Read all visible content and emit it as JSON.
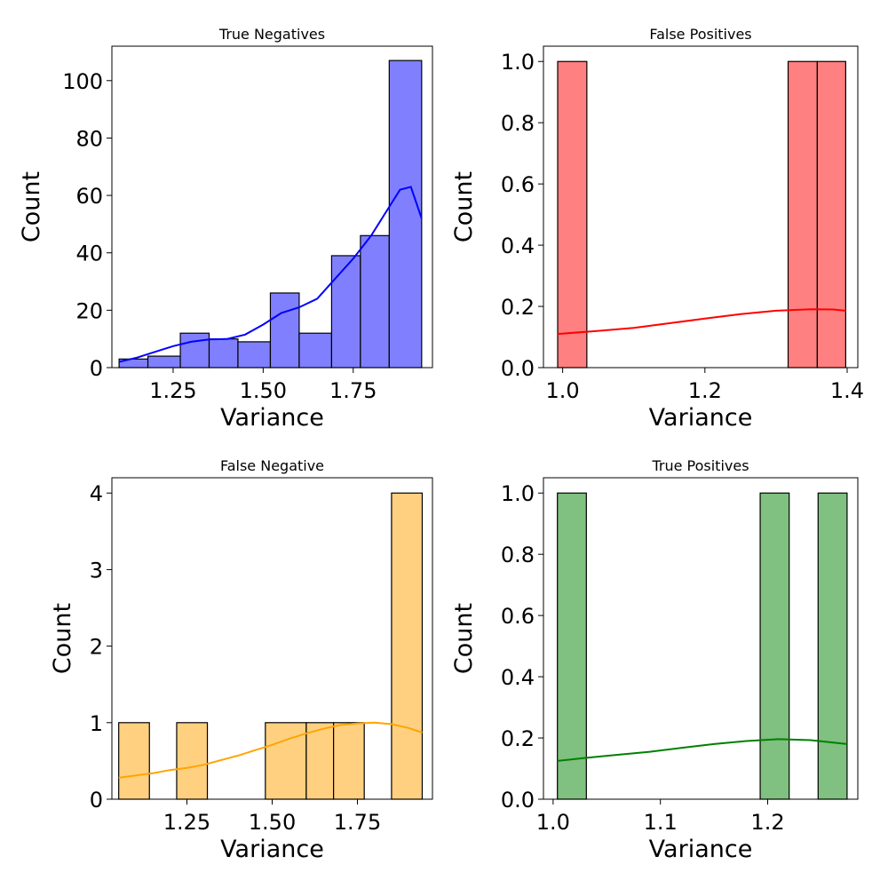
{
  "chart_data": [
    {
      "type": "bar",
      "title": "True Negatives",
      "xlabel": "Variance",
      "ylabel": "Count",
      "color": "#8080ff",
      "kde_color": "#0000ff",
      "xlim": [
        1.08,
        1.97
      ],
      "ylim": [
        0,
        112
      ],
      "xticks": [
        1.25,
        1.5,
        1.75
      ],
      "xtick_labels": [
        "1.25",
        "1.50",
        "1.75"
      ],
      "yticks": [
        0,
        20,
        40,
        60,
        80,
        100
      ],
      "ytick_labels": [
        "0",
        "20",
        "40",
        "60",
        "80",
        "100"
      ],
      "bins": [
        {
          "x0": 1.1,
          "x1": 1.18,
          "count": 3
        },
        {
          "x0": 1.18,
          "x1": 1.27,
          "count": 4
        },
        {
          "x0": 1.27,
          "x1": 1.35,
          "count": 12
        },
        {
          "x0": 1.35,
          "x1": 1.43,
          "count": 10
        },
        {
          "x0": 1.43,
          "x1": 1.52,
          "count": 9
        },
        {
          "x0": 1.52,
          "x1": 1.6,
          "count": 26
        },
        {
          "x0": 1.6,
          "x1": 1.69,
          "count": 12
        },
        {
          "x0": 1.69,
          "x1": 1.77,
          "count": 39
        },
        {
          "x0": 1.77,
          "x1": 1.85,
          "count": 46
        },
        {
          "x0": 1.85,
          "x1": 1.94,
          "count": 107
        }
      ],
      "kde": [
        [
          1.1,
          2
        ],
        [
          1.15,
          3.5
        ],
        [
          1.2,
          5.5
        ],
        [
          1.25,
          7.5
        ],
        [
          1.3,
          9
        ],
        [
          1.35,
          9.8
        ],
        [
          1.4,
          10
        ],
        [
          1.45,
          11.5
        ],
        [
          1.5,
          15
        ],
        [
          1.55,
          19
        ],
        [
          1.6,
          21
        ],
        [
          1.65,
          24
        ],
        [
          1.7,
          31
        ],
        [
          1.75,
          38
        ],
        [
          1.8,
          46
        ],
        [
          1.85,
          56
        ],
        [
          1.88,
          62
        ],
        [
          1.91,
          63
        ],
        [
          1.94,
          52
        ]
      ]
    },
    {
      "type": "bar",
      "title": "False Positives",
      "xlabel": "Variance",
      "ylabel": "Count",
      "color": "#ff8080",
      "kde_color": "#ff0000",
      "xlim": [
        0.973,
        1.415
      ],
      "ylim": [
        0,
        1.05
      ],
      "xticks": [
        1.0,
        1.2,
        1.4
      ],
      "xtick_labels": [
        "1.0",
        "1.2",
        "1.4"
      ],
      "yticks": [
        0,
        0.2,
        0.4,
        0.6,
        0.8,
        1.0
      ],
      "ytick_labels": [
        "0.0",
        "0.2",
        "0.4",
        "0.6",
        "0.8",
        "1.0"
      ],
      "bins": [
        {
          "x0": 0.993,
          "x1": 1.034,
          "count": 1
        },
        {
          "x0": 1.034,
          "x1": 1.074,
          "count": 0
        },
        {
          "x0": 1.074,
          "x1": 1.115,
          "count": 0
        },
        {
          "x0": 1.115,
          "x1": 1.155,
          "count": 0
        },
        {
          "x0": 1.155,
          "x1": 1.196,
          "count": 0
        },
        {
          "x0": 1.196,
          "x1": 1.236,
          "count": 0
        },
        {
          "x0": 1.236,
          "x1": 1.277,
          "count": 0
        },
        {
          "x0": 1.277,
          "x1": 1.317,
          "count": 0
        },
        {
          "x0": 1.317,
          "x1": 1.358,
          "count": 1
        },
        {
          "x0": 1.358,
          "x1": 1.398,
          "count": 1
        }
      ],
      "kde": [
        [
          0.993,
          0.11
        ],
        [
          1.05,
          0.12
        ],
        [
          1.1,
          0.13
        ],
        [
          1.15,
          0.145
        ],
        [
          1.2,
          0.16
        ],
        [
          1.25,
          0.175
        ],
        [
          1.3,
          0.186
        ],
        [
          1.35,
          0.191
        ],
        [
          1.38,
          0.19
        ],
        [
          1.398,
          0.186
        ]
      ]
    },
    {
      "type": "bar",
      "title": "False Negative",
      "xlabel": "Variance",
      "ylabel": "Count",
      "color": "#ffd080",
      "kde_color": "#ffa500",
      "xlim": [
        1.03,
        1.97
      ],
      "ylim": [
        0,
        4.2
      ],
      "xticks": [
        1.25,
        1.5,
        1.75
      ],
      "xtick_labels": [
        "1.25",
        "1.50",
        "1.75"
      ],
      "yticks": [
        0,
        1,
        2,
        3,
        4
      ],
      "ytick_labels": [
        "0",
        "1",
        "2",
        "3",
        "4"
      ],
      "bins": [
        {
          "x0": 1.05,
          "x1": 1.14,
          "count": 1
        },
        {
          "x0": 1.14,
          "x1": 1.22,
          "count": 0
        },
        {
          "x0": 1.22,
          "x1": 1.31,
          "count": 1
        },
        {
          "x0": 1.31,
          "x1": 1.4,
          "count": 0
        },
        {
          "x0": 1.4,
          "x1": 1.48,
          "count": 0
        },
        {
          "x0": 1.48,
          "x1": 1.6,
          "count": 1
        },
        {
          "x0": 1.6,
          "x1": 1.68,
          "count": 1
        },
        {
          "x0": 1.68,
          "x1": 1.77,
          "count": 1
        },
        {
          "x0": 1.77,
          "x1": 1.85,
          "count": 0
        },
        {
          "x0": 1.85,
          "x1": 1.94,
          "count": 4
        }
      ],
      "kde": [
        [
          1.05,
          0.28
        ],
        [
          1.1,
          0.31
        ],
        [
          1.15,
          0.34
        ],
        [
          1.2,
          0.38
        ],
        [
          1.25,
          0.41
        ],
        [
          1.3,
          0.45
        ],
        [
          1.35,
          0.51
        ],
        [
          1.4,
          0.57
        ],
        [
          1.45,
          0.64
        ],
        [
          1.5,
          0.71
        ],
        [
          1.55,
          0.79
        ],
        [
          1.6,
          0.86
        ],
        [
          1.65,
          0.92
        ],
        [
          1.7,
          0.97
        ],
        [
          1.75,
          0.99
        ],
        [
          1.8,
          1.0
        ],
        [
          1.85,
          0.98
        ],
        [
          1.9,
          0.93
        ],
        [
          1.94,
          0.87
        ]
      ]
    },
    {
      "type": "bar",
      "title": "True Positives",
      "xlabel": "Variance",
      "ylabel": "Count",
      "color": "#80c080",
      "kde_color": "#008000",
      "xlim": [
        0.991,
        1.284
      ],
      "ylim": [
        0,
        1.05
      ],
      "xticks": [
        1.0,
        1.1,
        1.2
      ],
      "xtick_labels": [
        "1.0",
        "1.1",
        "1.2"
      ],
      "yticks": [
        0,
        0.2,
        0.4,
        0.6,
        0.8,
        1.0
      ],
      "ytick_labels": [
        "0.0",
        "0.2",
        "0.4",
        "0.6",
        "0.8",
        "1.0"
      ],
      "bins": [
        {
          "x0": 1.004,
          "x1": 1.031,
          "count": 1
        },
        {
          "x0": 1.031,
          "x1": 1.058,
          "count": 0
        },
        {
          "x0": 1.058,
          "x1": 1.085,
          "count": 0
        },
        {
          "x0": 1.085,
          "x1": 1.112,
          "count": 0
        },
        {
          "x0": 1.112,
          "x1": 1.139,
          "count": 0
        },
        {
          "x0": 1.139,
          "x1": 1.166,
          "count": 0
        },
        {
          "x0": 1.166,
          "x1": 1.193,
          "count": 0
        },
        {
          "x0": 1.193,
          "x1": 1.22,
          "count": 1
        },
        {
          "x0": 1.22,
          "x1": 1.247,
          "count": 0
        },
        {
          "x0": 1.247,
          "x1": 1.274,
          "count": 1
        }
      ],
      "kde": [
        [
          1.004,
          0.125
        ],
        [
          1.03,
          0.135
        ],
        [
          1.06,
          0.145
        ],
        [
          1.09,
          0.155
        ],
        [
          1.12,
          0.168
        ],
        [
          1.15,
          0.18
        ],
        [
          1.18,
          0.19
        ],
        [
          1.21,
          0.196
        ],
        [
          1.24,
          0.193
        ],
        [
          1.274,
          0.18
        ]
      ]
    }
  ]
}
